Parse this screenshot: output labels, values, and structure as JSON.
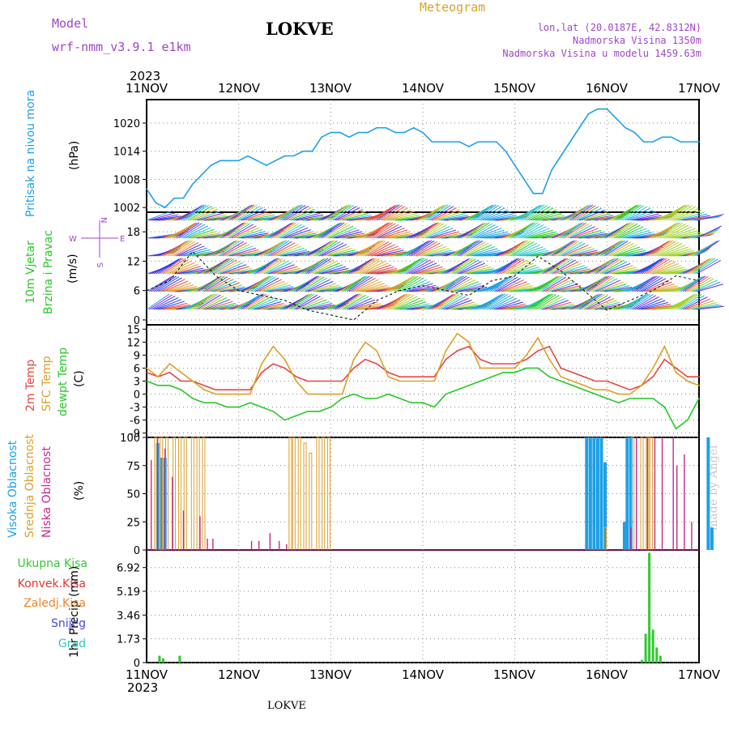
{
  "header": {
    "model_label": "Model",
    "model_name": "wrf-nmm_v3.9.1 e1km",
    "station": "LOKVE",
    "chart_type": "Meteogram",
    "lonlat": "lon,lat (20.0187E, 42.8312N)",
    "elevation": "Nadmorska Visina 1350m",
    "model_elevation": "Nadmorska Visina u modelu 1459.63m",
    "year": "2023",
    "footer_station": "LOKVE",
    "watermark": "made by Angel"
  },
  "colors": {
    "pressure": "#1ea0e6",
    "temp2m": "#e64646",
    "sfc": "#dca028",
    "dewpt": "#28c828",
    "high_cloud": "#1ea0e6",
    "mid_cloud": "#dca028",
    "low_cloud": "#c8288c",
    "wind_label": "#28c828",
    "compass": "#a046c8",
    "precip_total": "#32c832",
    "precip_conv": "#e63232",
    "precip_strat": "#f08228",
    "snow": "#4646e6",
    "hail": "#28c8c8",
    "title_purple": "#a046c8",
    "title_gold": "#dca028"
  },
  "chart_data": [
    {
      "id": "pressure",
      "type": "line",
      "ylabel": [
        "Pritisak na nivou mora",
        "(hPa)"
      ],
      "yticks": [
        1002,
        1008,
        1014,
        1020
      ],
      "ylim": [
        1001,
        1025
      ],
      "x_ticks": [
        "11NOV",
        "12NOV",
        "13NOV",
        "14NOV",
        "15NOV",
        "16NOV",
        "17NOV"
      ],
      "x_days": [
        0,
        6
      ],
      "series": [
        {
          "x": [
            0,
            0.1,
            0.2,
            0.3,
            0.4,
            0.5,
            0.6,
            0.7,
            0.8,
            0.9,
            1.0,
            1.1,
            1.2,
            1.3,
            1.4,
            1.5,
            1.6,
            1.7,
            1.8,
            1.9,
            2.0,
            2.1,
            2.2,
            2.3,
            2.4,
            2.5,
            2.6,
            2.7,
            2.8,
            2.9,
            3.0,
            3.1,
            3.2,
            3.3,
            3.4,
            3.5,
            3.6,
            3.7,
            3.8,
            3.9,
            4.0,
            4.1,
            4.2,
            4.3,
            4.4,
            4.5,
            4.6,
            4.7,
            4.8,
            4.9,
            5.0,
            5.1,
            5.2,
            5.3,
            5.4,
            5.5,
            5.6,
            5.7,
            5.8,
            5.9,
            6.0
          ],
          "values": [
            1006,
            1003,
            1002,
            1004,
            1004,
            1007,
            1009,
            1011,
            1012,
            1012,
            1012,
            1013,
            1012,
            1011,
            1012,
            1013,
            1013,
            1014,
            1014,
            1017,
            1018,
            1018,
            1017,
            1018,
            1018,
            1019,
            1019,
            1018,
            1018,
            1019,
            1018,
            1016,
            1016,
            1016,
            1016,
            1015,
            1016,
            1016,
            1016,
            1014,
            1011,
            1008,
            1005,
            1005,
            1010,
            1013,
            1016,
            1019,
            1022,
            1023,
            1023,
            1021,
            1019,
            1018,
            1016,
            1016,
            1017,
            1017,
            1016,
            1016,
            1016
          ]
        }
      ]
    },
    {
      "id": "wind",
      "type": "line",
      "ylabel": [
        "10m Vjetar",
        "Brzina i Pravac",
        "(m/s)"
      ],
      "compass": {
        "n": "N",
        "w": "W",
        "e": "E",
        "s": "S"
      },
      "yticks": [
        0,
        6,
        12,
        18
      ],
      "ylim": [
        -1,
        22
      ],
      "x_days": [
        0,
        6
      ],
      "series": [
        {
          "name": "speed",
          "x": [
            0,
            0.25,
            0.5,
            0.75,
            1.0,
            1.25,
            1.5,
            1.75,
            2.0,
            2.25,
            2.5,
            2.75,
            3.0,
            3.25,
            3.5,
            3.75,
            4.0,
            4.25,
            4.5,
            4.75,
            5.0,
            5.25,
            5.5,
            5.75,
            6.0
          ],
          "values": [
            6,
            8,
            14,
            9,
            6,
            5,
            4,
            2,
            1,
            0,
            4,
            6,
            7,
            6,
            5,
            8,
            9,
            13,
            10,
            6,
            2,
            4,
            6,
            9,
            8
          ]
        }
      ]
    },
    {
      "id": "temperature",
      "type": "line",
      "ylabel": [
        "2m Temp",
        "SFC Temp",
        "dewpt Temp",
        "(C)"
      ],
      "yticks": [
        -9,
        -6,
        -3,
        0,
        3,
        6,
        9,
        12,
        15
      ],
      "ylim": [
        -10,
        16
      ],
      "x_days": [
        0,
        6
      ],
      "series": [
        {
          "name": "2m Temp",
          "x": [
            0,
            0.125,
            0.25,
            0.375,
            0.5,
            0.625,
            0.75,
            0.875,
            1.0,
            1.125,
            1.25,
            1.375,
            1.5,
            1.625,
            1.75,
            1.875,
            2.0,
            2.125,
            2.25,
            2.375,
            2.5,
            2.625,
            2.75,
            2.875,
            3.0,
            3.125,
            3.25,
            3.375,
            3.5,
            3.625,
            3.75,
            3.875,
            4.0,
            4.125,
            4.25,
            4.375,
            4.5,
            4.625,
            4.75,
            4.875,
            5.0,
            5.125,
            5.25,
            5.375,
            5.5,
            5.625,
            5.75,
            5.875,
            6.0
          ],
          "values": [
            5,
            4,
            5,
            3,
            3,
            2,
            1,
            1,
            1,
            1,
            5,
            7,
            6,
            4,
            3,
            3,
            3,
            3,
            6,
            8,
            7,
            5,
            4,
            4,
            4,
            4,
            8,
            10,
            11,
            8,
            7,
            7,
            7,
            8,
            10,
            11,
            6,
            5,
            4,
            3,
            3,
            2,
            1,
            2,
            4,
            8,
            6,
            4,
            4
          ]
        },
        {
          "name": "SFC Temp",
          "x": [
            0,
            0.125,
            0.25,
            0.375,
            0.5,
            0.625,
            0.75,
            0.875,
            1.0,
            1.125,
            1.25,
            1.375,
            1.5,
            1.625,
            1.75,
            1.875,
            2.0,
            2.125,
            2.25,
            2.375,
            2.5,
            2.625,
            2.75,
            2.875,
            3.0,
            3.125,
            3.25,
            3.375,
            3.5,
            3.625,
            3.75,
            3.875,
            4.0,
            4.125,
            4.25,
            4.375,
            4.5,
            4.625,
            4.75,
            4.875,
            5.0,
            5.125,
            5.25,
            5.375,
            5.5,
            5.625,
            5.75,
            5.875,
            6.0
          ],
          "values": [
            6,
            4,
            7,
            5,
            3,
            1,
            0,
            0,
            0,
            0,
            7,
            11,
            8,
            3,
            0,
            0,
            0,
            0,
            8,
            12,
            10,
            4,
            3,
            3,
            3,
            3,
            10,
            14,
            12,
            6,
            6,
            6,
            6,
            9,
            13,
            8,
            4,
            3,
            2,
            1,
            1,
            0,
            0,
            2,
            6,
            11,
            5,
            3,
            2
          ]
        },
        {
          "name": "dewpt Temp",
          "x": [
            0,
            0.125,
            0.25,
            0.375,
            0.5,
            0.625,
            0.75,
            0.875,
            1.0,
            1.125,
            1.25,
            1.375,
            1.5,
            1.625,
            1.75,
            1.875,
            2.0,
            2.125,
            2.25,
            2.375,
            2.5,
            2.625,
            2.75,
            2.875,
            3.0,
            3.125,
            3.25,
            3.375,
            3.5,
            3.625,
            3.75,
            3.875,
            4.0,
            4.125,
            4.25,
            4.375,
            4.5,
            4.625,
            4.75,
            4.875,
            5.0,
            5.125,
            5.25,
            5.375,
            5.5,
            5.625,
            5.75,
            5.875,
            6.0
          ],
          "values": [
            3,
            2,
            2,
            1,
            -1,
            -2,
            -2,
            -3,
            -3,
            -2,
            -3,
            -4,
            -6,
            -5,
            -4,
            -4,
            -3,
            -1,
            0,
            -1,
            -1,
            0,
            -1,
            -2,
            -2,
            -3,
            0,
            1,
            2,
            3,
            4,
            5,
            5,
            6,
            6,
            4,
            3,
            2,
            1,
            0,
            -1,
            -2,
            -1,
            -1,
            -1,
            -3,
            -8,
            -6,
            -1
          ]
        }
      ]
    },
    {
      "id": "clouds",
      "type": "bar",
      "ylabel": [
        "Visoka Oblacnost",
        "Srednja Oblacnost",
        "Niska Oblacnost",
        "(%)"
      ],
      "yticks": [
        0,
        25,
        50,
        75,
        100
      ],
      "ylim": [
        0,
        100
      ],
      "x_days": [
        0,
        6
      ],
      "series": [
        {
          "name": "Visoka Oblacnost",
          "x": [
            0.12,
            0.16,
            0.2,
            4.78,
            4.82,
            4.86,
            4.9,
            4.94,
            4.98,
            5.19,
            5.22,
            5.26,
            6.1,
            6.14
          ],
          "values": [
            95,
            82,
            82,
            100,
            100,
            100,
            100,
            100,
            78,
            25,
            100,
            100,
            100,
            20
          ]
        },
        {
          "name": "Srednja Oblacnost",
          "x": [
            0.1,
            0.16,
            0.22,
            0.3,
            0.36,
            0.42,
            0.5,
            0.56,
            0.62,
            1.56,
            1.6,
            1.66,
            1.72,
            1.78,
            1.86,
            1.92,
            1.98,
            4.98,
            5.28,
            5.38,
            5.44,
            5.48
          ],
          "values": [
            100,
            100,
            100,
            100,
            100,
            100,
            100,
            100,
            100,
            100,
            100,
            100,
            95,
            86,
            100,
            100,
            100,
            20,
            100,
            100,
            100,
            100
          ]
        },
        {
          "name": "Niska Oblacnost",
          "x": [
            0.05,
            0.12,
            0.2,
            0.28,
            0.4,
            0.58,
            0.66,
            0.72,
            1.14,
            1.22,
            1.34,
            1.44,
            1.52,
            5.26,
            5.32,
            5.44,
            5.52,
            5.6,
            5.72,
            5.76,
            5.84,
            5.92
          ],
          "values": [
            80,
            100,
            90,
            65,
            35,
            30,
            10,
            10,
            8,
            8,
            15,
            8,
            5,
            20,
            100,
            100,
            100,
            100,
            100,
            75,
            85,
            25
          ]
        }
      ]
    },
    {
      "id": "precip",
      "type": "bar",
      "ylabel": [
        "1hr Precip (mm)"
      ],
      "legend": [
        "Ukupna Kisa",
        "Konvek.Kisa",
        "Zaledj.Kisa",
        "Snijeg",
        "Grad"
      ],
      "yticks": [
        "0",
        "1.73",
        "3.46",
        "5.19",
        "6.92"
      ],
      "ylim": [
        0,
        8.2
      ],
      "x_days": [
        0,
        6
      ],
      "series": [
        {
          "name": "Ukupna Kisa",
          "x": [
            0.14,
            0.18,
            0.36,
            5.38,
            5.42,
            5.46,
            5.5,
            5.54,
            5.58
          ],
          "values": [
            0.5,
            0.3,
            0.5,
            0.2,
            2.1,
            8.0,
            2.4,
            1.1,
            0.5
          ]
        }
      ]
    }
  ]
}
